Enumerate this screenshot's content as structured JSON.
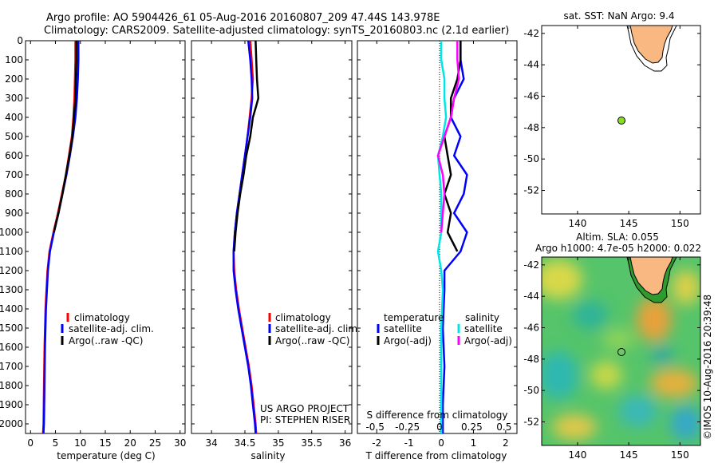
{
  "header": {
    "line1": "Argo profile: AO 5904426_61 05-Aug-2016 20160807_209 47.44S 143.978E",
    "line2": "Climatology: CARS2009. Satellite-adjusted climatology: synTS_20160803.nc (2.1d earlier)"
  },
  "credit": "©IMOS 10-Aug-2016 20:39:48",
  "colors": {
    "climatology": "#ff0000",
    "satellite": "#0000ff",
    "argo": "#000000",
    "sal_sat": "#00e5e5",
    "sal_argo": "#ff00ff",
    "land": "#f9b882",
    "argo_marker": "#88dd22"
  },
  "chart_data": [
    {
      "type": "line",
      "xlabel": "temperature (deg C)",
      "ylabel": "",
      "xlim": [
        -1,
        31
      ],
      "ylim": [
        0,
        2050
      ],
      "y_reversed": true,
      "x_ticks": [
        "0",
        "5",
        "10",
        "15",
        "20",
        "25",
        "30"
      ],
      "y_ticks": [
        "0",
        "100",
        "200",
        "300",
        "400",
        "500",
        "600",
        "700",
        "800",
        "900",
        "1000",
        "1100",
        "1200",
        "1300",
        "1400",
        "1500",
        "1600",
        "1700",
        "1800",
        "1900",
        "2000"
      ],
      "legend": [
        "climatology",
        "satellite-adj. clim.",
        "Argo(..raw -QC)"
      ],
      "legend_position": "bottom-right",
      "series": [
        {
          "name": "climatology",
          "color": "#ff0000",
          "depth": [
            0,
            100,
            200,
            300,
            400,
            500,
            600,
            700,
            800,
            900,
            1000,
            1100,
            1200,
            1400,
            1600,
            1800,
            2000,
            2050
          ],
          "values": [
            9.0,
            9.0,
            8.9,
            8.8,
            8.6,
            8.3,
            7.7,
            7.1,
            6.3,
            5.5,
            4.6,
            3.8,
            3.4,
            3.0,
            2.8,
            2.7,
            2.6,
            2.5
          ]
        },
        {
          "name": "satellite-adj. clim.",
          "color": "#0000ff",
          "depth": [
            0,
            100,
            200,
            300,
            400,
            500,
            600,
            700,
            800,
            900,
            1000,
            1100,
            1200,
            1400,
            1600,
            1800,
            2000,
            2050
          ],
          "values": [
            9.6,
            9.6,
            9.5,
            9.3,
            9.0,
            8.5,
            7.9,
            7.2,
            6.4,
            5.6,
            4.7,
            3.9,
            3.5,
            3.1,
            2.9,
            2.8,
            2.7,
            2.6
          ]
        },
        {
          "name": "Argo(..raw -QC)",
          "color": "#000000",
          "depth": [
            0,
            100,
            200,
            300,
            400,
            500,
            600,
            700,
            800,
            900,
            1000
          ],
          "values": [
            9.2,
            9.2,
            9.1,
            9.0,
            8.7,
            8.4,
            7.8,
            7.1,
            6.4,
            5.6,
            4.7
          ]
        }
      ]
    },
    {
      "type": "line",
      "xlabel": "salinity",
      "xlim": [
        33.7,
        36.1
      ],
      "ylim": [
        0,
        2050
      ],
      "y_reversed": true,
      "x_ticks": [
        "34",
        "34.5",
        "35",
        "35.5",
        "36"
      ],
      "legend": [
        "climatology",
        "satellite-adj. clim.",
        "Argo(..raw -QC)"
      ],
      "legend_position": "bottom-right",
      "annotations": [
        "US ARGO PROJECT",
        "PI: STEPHEN RISER"
      ],
      "series": [
        {
          "name": "climatology",
          "color": "#ff0000",
          "depth": [
            0,
            100,
            200,
            300,
            400,
            500,
            600,
            700,
            800,
            900,
            1000,
            1100,
            1200,
            1300,
            1400,
            1500,
            1600,
            1700,
            1800,
            1900,
            2000,
            2050
          ],
          "values": [
            34.58,
            34.6,
            34.62,
            34.6,
            34.57,
            34.54,
            34.5,
            34.46,
            34.42,
            34.38,
            34.35,
            34.33,
            34.34,
            34.37,
            34.41,
            34.46,
            34.51,
            34.56,
            34.6,
            34.63,
            34.66,
            34.67
          ]
        },
        {
          "name": "satellite-adj. clim.",
          "color": "#0000ff",
          "depth": [
            0,
            100,
            200,
            300,
            400,
            500,
            600,
            700,
            800,
            900,
            1000,
            1100,
            1200,
            1300,
            1400,
            1500,
            1600,
            1700,
            1800,
            1900,
            2000,
            2050
          ],
          "values": [
            34.55,
            34.58,
            34.6,
            34.61,
            34.58,
            34.54,
            34.5,
            34.46,
            34.42,
            34.38,
            34.35,
            34.33,
            34.33,
            34.36,
            34.4,
            34.45,
            34.5,
            34.55,
            34.59,
            34.62,
            34.65,
            34.66
          ]
        },
        {
          "name": "Argo(..raw -QC)",
          "color": "#000000",
          "depth": [
            0,
            100,
            200,
            300,
            340,
            400,
            500,
            600,
            700,
            800,
            900,
            1000,
            1100
          ],
          "values": [
            34.66,
            34.67,
            34.68,
            34.7,
            34.67,
            34.62,
            34.58,
            34.52,
            34.48,
            34.43,
            34.39,
            34.36,
            34.34
          ]
        }
      ]
    },
    {
      "type": "line",
      "xlabel": "T difference from climatology",
      "top_label": "S difference from climatology",
      "xlim": [
        -2.6,
        2.35
      ],
      "ylim": [
        0,
        2050
      ],
      "y_reversed": true,
      "x_ticks": [
        "-2",
        "-1",
        "0",
        "1",
        "2"
      ],
      "top_ticks": [
        "-0.5",
        "-0.25",
        "0",
        "0.25",
        "0.5"
      ],
      "legend": [
        "temperature",
        "satellite",
        "Argo(-adj)",
        "salinity",
        "satellite",
        "Argo(-adj)"
      ],
      "legend_position": "bottom",
      "series": [
        {
          "name": "satellite",
          "color": "#0000ff",
          "depth": [
            0,
            100,
            200,
            300,
            400,
            500,
            600,
            700,
            800,
            900,
            1000,
            1100,
            1200,
            1300,
            1500,
            1700,
            1900,
            2050
          ],
          "values": [
            0.6,
            0.6,
            0.7,
            0.4,
            0.3,
            0.6,
            0.4,
            0.8,
            0.7,
            0.4,
            0.8,
            0.6,
            0.1,
            0.1,
            0.05,
            0.1,
            0.05,
            0.05
          ]
        },
        {
          "name": "Argo(-adj)",
          "color": "#000000",
          "depth": [
            0,
            100,
            200,
            300,
            400,
            500,
            600,
            700,
            800,
            900,
            1000,
            1100
          ],
          "values": [
            0.6,
            0.6,
            0.5,
            0.3,
            0.3,
            0.1,
            0.2,
            0.3,
            0.1,
            0.3,
            0.2,
            0.5
          ]
        },
        {
          "name": "satellite",
          "color": "#00e5e5",
          "depth": [
            0,
            100,
            200,
            300,
            400,
            500,
            600,
            700,
            800,
            900,
            1000,
            1100,
            1200,
            1300,
            1500,
            1700,
            1900,
            2050
          ],
          "values": [
            0.0,
            0.0,
            0.1,
            0.1,
            0.15,
            0.05,
            -0.1,
            -0.05,
            0.0,
            0.0,
            0.0,
            -0.1,
            0.0,
            0.05,
            0.0,
            0.0,
            0.0,
            0.0
          ]
        },
        {
          "name": "Argo(-adj)",
          "color": "#ff00ff",
          "depth": [
            0,
            100,
            200,
            300,
            400,
            500,
            600,
            700,
            800,
            900,
            1000
          ],
          "values": [
            0.5,
            0.5,
            0.55,
            0.4,
            0.3,
            0.1,
            -0.1,
            0.05,
            0.1,
            0.05,
            0.0
          ]
        }
      ]
    },
    {
      "type": "scatter",
      "title": "sat. SST: NaN Argo: 9.4",
      "xlim": [
        136.5,
        152
      ],
      "ylim": [
        -53.5,
        -41.5
      ],
      "x_ticks": [
        "140",
        "145",
        "150"
      ],
      "y_ticks": [
        "-42",
        "-44",
        "-46",
        "-48",
        "-50",
        "-52"
      ],
      "points": [
        {
          "x": 143.978,
          "y": -47.44
        }
      ]
    },
    {
      "type": "heatmap",
      "title_line1": "Altim. SLA: 0.055",
      "title_line2": "Argo h1000: 4.7e-05 h2000: 0.022",
      "xlim": [
        136.5,
        152
      ],
      "ylim": [
        -53.5,
        -41.5
      ],
      "x_ticks": [
        "140",
        "145",
        "150"
      ],
      "y_ticks": [
        "-42",
        "-44",
        "-46",
        "-48",
        "-50",
        "-52"
      ],
      "points": [
        {
          "x": 143.978,
          "y": -47.44
        }
      ]
    }
  ]
}
